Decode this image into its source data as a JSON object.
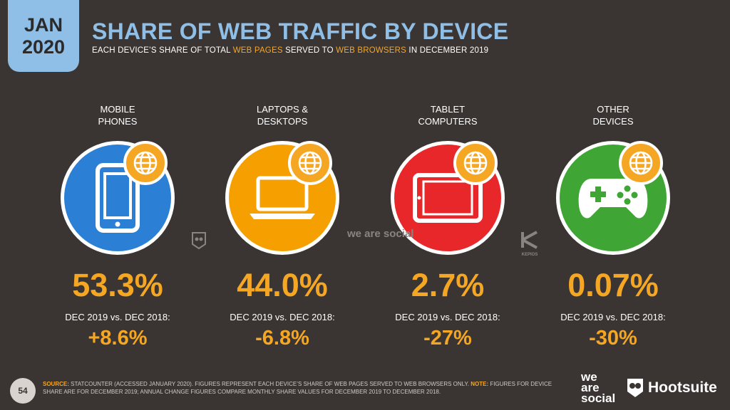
{
  "badge": {
    "month": "JAN",
    "year": "2020"
  },
  "header": {
    "title": "SHARE OF WEB TRAFFIC BY DEVICE",
    "subtitle_prefix": "EACH DEVICE’S SHARE OF TOTAL ",
    "subtitle_hl1": "WEB PAGES",
    "subtitle_mid": " SERVED TO ",
    "subtitle_hl2": "WEB BROWSERS",
    "subtitle_suffix": " IN DECEMBER 2019"
  },
  "colors": {
    "accent": "#f5a623",
    "title_blue": "#8fbfe6",
    "background": "#3a3532"
  },
  "devices": [
    {
      "label1": "MOBILE",
      "label2": "PHONES",
      "share": "53.3%",
      "change_label": "DEC 2019 vs. DEC 2018:",
      "change": "+8.6%",
      "color": "#2b7fd4",
      "icon": "mobile-phone-icon"
    },
    {
      "label1": "LAPTOPS &",
      "label2": "DESKTOPS",
      "share": "44.0%",
      "change_label": "DEC 2019 vs. DEC 2018:",
      "change": "-6.8%",
      "color": "#f5a000",
      "icon": "laptop-icon"
    },
    {
      "label1": "TABLET",
      "label2": "COMPUTERS",
      "share": "2.7%",
      "change_label": "DEC 2019 vs. DEC 2018:",
      "change": "-27%",
      "color": "#e8272a",
      "icon": "tablet-icon"
    },
    {
      "label1": "OTHER",
      "label2": "DEVICES",
      "share": "0.07%",
      "change_label": "DEC 2019 vs. DEC 2018:",
      "change": "-30%",
      "color": "#3fa535",
      "icon": "game-controller-icon"
    }
  ],
  "watermarks": {
    "was": "we are social",
    "kepios": "KEPIOS"
  },
  "footer": {
    "page": "54",
    "source_key": "SOURCE:",
    "source_text": " STATCOUNTER (ACCESSED JANUARY 2020). FIGURES REPRESENT EACH DEVICE’S SHARE OF WEB PAGES SERVED TO WEB BROWSERS ONLY. ",
    "note_key": "NOTE:",
    "note_text": " FIGURES FOR DEVICE SHARE ARE FOR DECEMBER 2019; ANNUAL CHANGE FIGURES COMPARE MONTHLY SHARE VALUES FOR DECEMBER 2019 TO DECEMBER 2018.",
    "brand1_l1": "we",
    "brand1_l2": "are",
    "brand1_l3": "social",
    "brand2": "Hootsuite"
  }
}
